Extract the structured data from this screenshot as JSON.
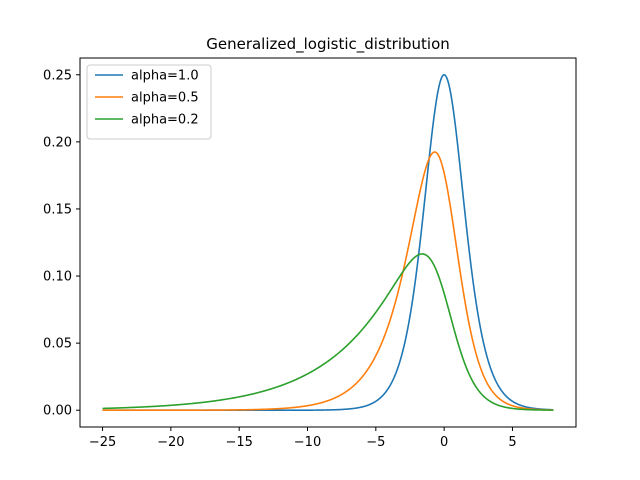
{
  "chart_data": {
    "type": "line",
    "title": "Generalized_logistic_distribution",
    "xlabel": "",
    "ylabel": "",
    "xlim": [
      -26.65,
      9.65
    ],
    "ylim": [
      -0.0125,
      0.2625
    ],
    "x_range": [
      -25,
      8
    ],
    "xticks": [
      -25,
      -20,
      -15,
      -10,
      -5,
      0,
      5
    ],
    "xtick_labels": [
      "−25",
      "−20",
      "−15",
      "−10",
      "−5",
      "0",
      "5"
    ],
    "yticks": [
      0.0,
      0.05,
      0.1,
      0.15,
      0.2,
      0.25
    ],
    "ytick_labels": [
      "0.00",
      "0.05",
      "0.10",
      "0.15",
      "0.20",
      "0.25"
    ],
    "grid": false,
    "legend_position": "upper-left",
    "series": [
      {
        "name": "alpha=1.0",
        "alpha": 1.0,
        "color": "#1f77b4",
        "peak": [
          0.0,
          0.25
        ]
      },
      {
        "name": "alpha=0.5",
        "alpha": 0.5,
        "color": "#ff7f0e",
        "peak": [
          -0.69,
          0.192
        ]
      },
      {
        "name": "alpha=0.2",
        "alpha": 0.2,
        "color": "#2ca02c",
        "peak": [
          -1.61,
          0.116
        ]
      }
    ]
  }
}
